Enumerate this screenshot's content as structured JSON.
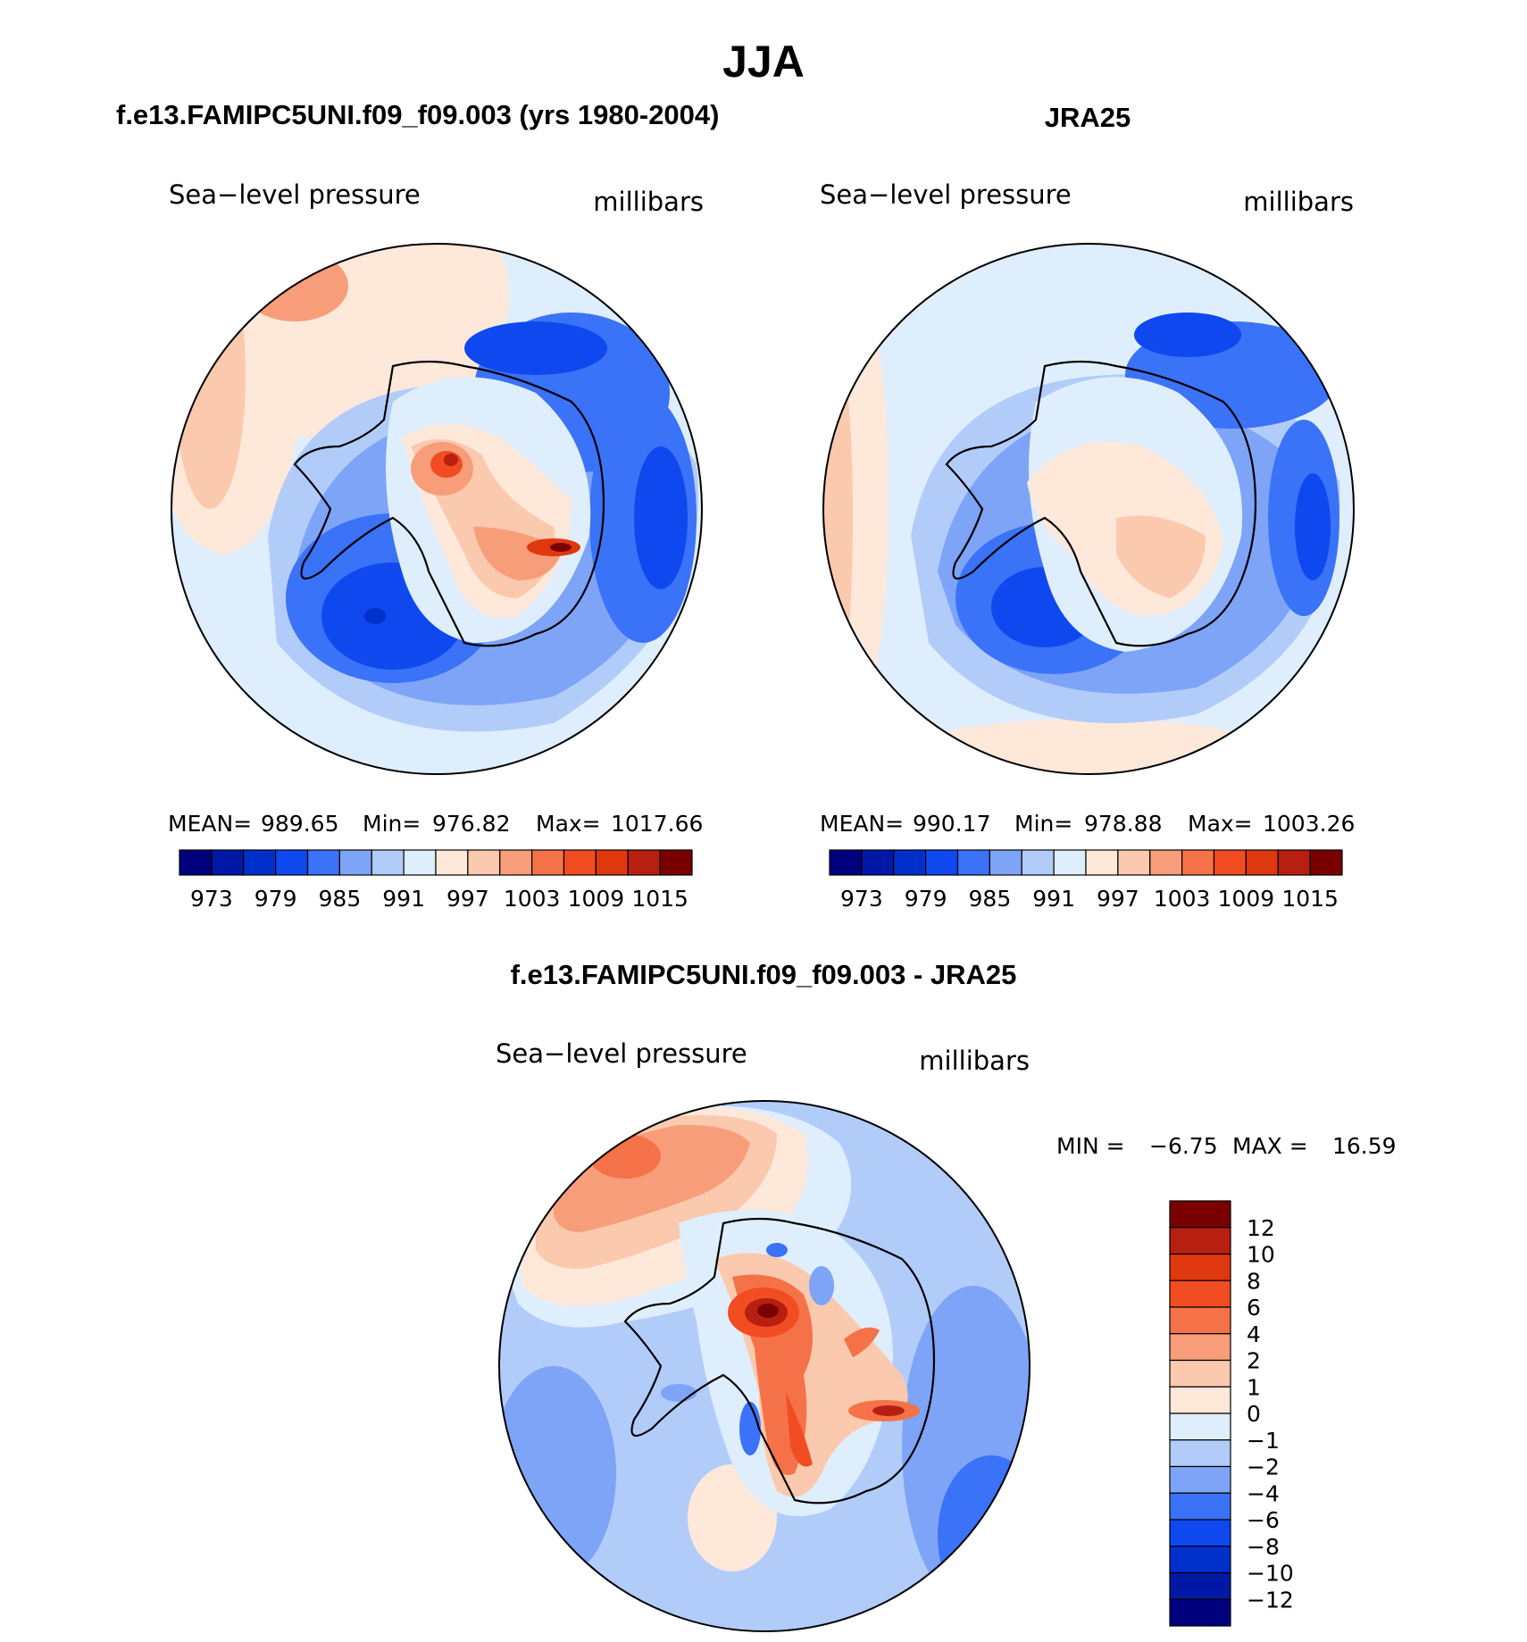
{
  "chart_data": [
    {
      "type": "heatmap",
      "projection": "south-polar-stereographic",
      "panel": "model",
      "title": "f.e13.FAMIPC5UNI.f09_f09.003 (yrs 1980-2004)",
      "variable": "Sea−level pressure",
      "units": "millibars",
      "stats": {
        "mean_label": "MEAN=",
        "mean": "989.65",
        "min_label": "Min=",
        "min": "976.82",
        "max_label": "Max=",
        "max": "1017.66"
      },
      "colorbar": {
        "tick_labels": [
          "973",
          "979",
          "985",
          "991",
          "997",
          "1003",
          "1009",
          "1015"
        ],
        "colors": [
          "#00007e",
          "#0018a6",
          "#0030cc",
          "#1048f0",
          "#3a72f8",
          "#7ea4f8",
          "#b2ccfa",
          "#dfeefc",
          "#fde8da",
          "#fbc9ad",
          "#f79d7a",
          "#f57248",
          "#f24c22",
          "#e0380e",
          "#b72010",
          "#7a0000"
        ]
      }
    },
    {
      "type": "heatmap",
      "projection": "south-polar-stereographic",
      "panel": "observations",
      "title": "JRA25",
      "variable": "Sea−level pressure",
      "units": "millibars",
      "stats": {
        "mean_label": "MEAN=",
        "mean": "990.17",
        "min_label": "Min=",
        "min": "978.88",
        "max_label": "Max=",
        "max": "1003.26"
      },
      "colorbar": {
        "tick_labels": [
          "973",
          "979",
          "985",
          "991",
          "997",
          "1003",
          "1009",
          "1015"
        ],
        "colors": [
          "#00007e",
          "#0018a6",
          "#0030cc",
          "#1048f0",
          "#3a72f8",
          "#7ea4f8",
          "#b2ccfa",
          "#dfeefc",
          "#fde8da",
          "#fbc9ad",
          "#f79d7a",
          "#f57248",
          "#f24c22",
          "#e0380e",
          "#b72010",
          "#7a0000"
        ]
      }
    },
    {
      "type": "heatmap",
      "projection": "south-polar-stereographic",
      "panel": "difference",
      "title": "f.e13.FAMIPC5UNI.f09_f09.003 - JRA25",
      "variable": "Sea−level pressure",
      "units": "millibars",
      "stats": {
        "min_label": "MIN =",
        "min": "−6.75",
        "max_label": "MAX =",
        "max": "16.59"
      },
      "colorbar": {
        "tick_labels": [
          "12",
          "10",
          "8",
          "6",
          "4",
          "2",
          "1",
          "0",
          "−1",
          "−2",
          "−4",
          "−6",
          "−8",
          "−10",
          "−12"
        ],
        "colors": [
          "#7a0000",
          "#b72010",
          "#e0380e",
          "#f24c22",
          "#f57248",
          "#f79d7a",
          "#fbc9ad",
          "#fde8da",
          "#dfeefc",
          "#b2ccfa",
          "#7ea4f8",
          "#3a72f8",
          "#1048f0",
          "#0030cc",
          "#0018a6",
          "#00007e"
        ]
      }
    }
  ],
  "figure": {
    "title": "JJA"
  }
}
